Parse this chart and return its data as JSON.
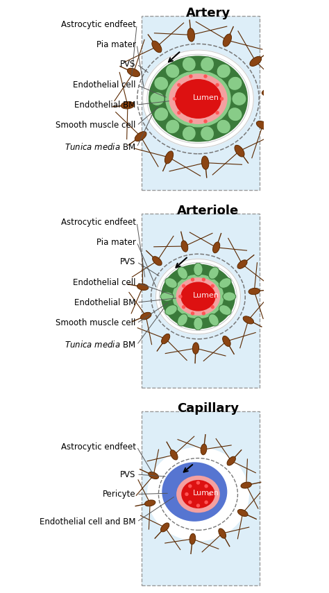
{
  "title_artery": "Artery",
  "title_arteriole": "Arteriole",
  "title_capillary": "Capillary",
  "bg_light": "#ddeef8",
  "dashed_gray": "#999999",
  "colors": {
    "lumen_red": "#dd1111",
    "lumen_dots": "#ff5555",
    "endothelial_bm_pink": "#f4a0a0",
    "smooth_muscle_green_dark": "#3a7a3a",
    "smooth_muscle_green_light": "#88cc88",
    "pia_white": "#f0f0f0",
    "astrocyte_fill": "#8b4513",
    "astrocyte_dark": "#5a2800",
    "pericyte_blue": "#4466cc",
    "pericyte_nucleus_fill": "#3355aa",
    "white": "#ffffff",
    "dashed_gray": "#888888"
  },
  "labels_artery": [
    "Astrocytic endfeet",
    "Pia mater",
    "PVS",
    "Endothelial cell",
    "Endothelial BM",
    "Smooth muscle cell",
    "Tunica media BM"
  ],
  "labels_arteriole": [
    "Astrocytic endfeet",
    "Pia mater",
    "PVS",
    "Endothelial cell",
    "Endothelial BM",
    "Smooth muscle cell",
    "Tunica media BM"
  ],
  "labels_capillary": [
    "Astrocytic endfeet",
    "PVS",
    "Pericyte",
    "Endothelial cell and BM"
  ],
  "font_size_title": 13,
  "font_size_label": 8.5
}
